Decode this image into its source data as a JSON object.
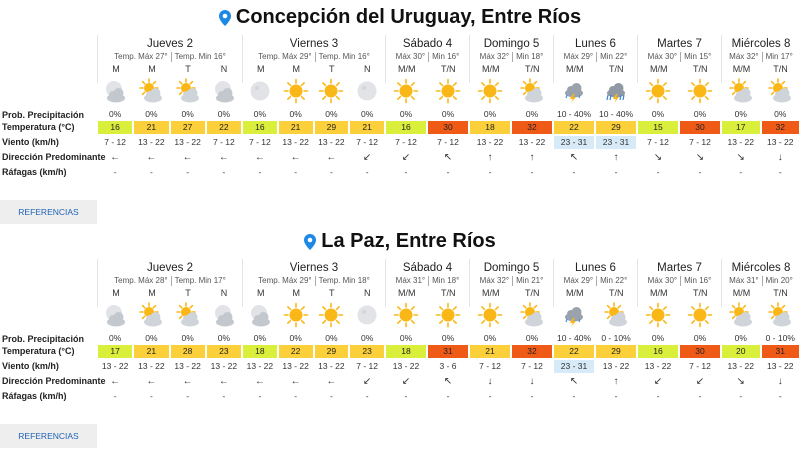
{
  "colors": {
    "pin": "#1e88e5",
    "temp_yellow": "#d9ef3b",
    "temp_gold": "#fcd03a",
    "temp_orange": "#f58e1f",
    "temp_red": "#f05a17",
    "wind_highlight": "#d6ebf7",
    "sun": "#f9b818",
    "cloud": "#cfd4da"
  },
  "row_labels": {
    "precip": "Prob. Precipitación",
    "temp": "Temperatura (°C)",
    "wind": "Viento (km/h)",
    "dir": "Dirección Predominante",
    "gusts": "Ráfagas (km/h)"
  },
  "locations": [
    {
      "title": "Concepción del Uruguay, Entre Ríos",
      "references_label": "REFERENCIAS",
      "days": [
        {
          "name": "Jueves 2",
          "max": "Temp. Máx 27°",
          "min": "Temp. Min 16°",
          "periods": [
            {
              "label": "M",
              "icon": "moon-cloud-icon",
              "precip": "0%",
              "temp": "16",
              "level": "yellow",
              "wind": "7 - 12",
              "arrow": "←",
              "gust": "-"
            },
            {
              "label": "M",
              "icon": "sun-cloud-icon",
              "precip": "0%",
              "temp": "21",
              "level": "gold",
              "wind": "13 - 22",
              "arrow": "←",
              "gust": "-"
            },
            {
              "label": "T",
              "icon": "sun-cloud-icon",
              "precip": "0%",
              "temp": "27",
              "level": "gold",
              "wind": "13 - 22",
              "arrow": "←",
              "gust": "-"
            },
            {
              "label": "N",
              "icon": "moon-cloud-icon",
              "precip": "0%",
              "temp": "22",
              "level": "gold",
              "wind": "7 - 12",
              "arrow": "←",
              "gust": "-"
            }
          ]
        },
        {
          "name": "Viernes 3",
          "max": "Temp. Máx 29°",
          "min": "Temp. Min 16°",
          "periods": [
            {
              "label": "M",
              "icon": "moon-icon",
              "precip": "0%",
              "temp": "16",
              "level": "yellow",
              "wind": "7 - 12",
              "arrow": "←",
              "gust": "-"
            },
            {
              "label": "M",
              "icon": "sun-icon",
              "precip": "0%",
              "temp": "21",
              "level": "gold",
              "wind": "13 - 22",
              "arrow": "←",
              "gust": "-"
            },
            {
              "label": "T",
              "icon": "sun-icon",
              "precip": "0%",
              "temp": "29",
              "level": "gold",
              "wind": "13 - 22",
              "arrow": "←",
              "gust": "-"
            },
            {
              "label": "N",
              "icon": "moon-icon",
              "precip": "0%",
              "temp": "21",
              "level": "gold",
              "wind": "7 - 12",
              "arrow": "↙",
              "gust": "-"
            }
          ]
        },
        {
          "name": "Sábado 4",
          "max": "Máx 30°",
          "min": "Min 16°",
          "periods": [
            {
              "label": "M/M",
              "icon": "sun-icon",
              "precip": "0%",
              "temp": "16",
              "level": "yellow",
              "wind": "7 - 12",
              "arrow": "↙",
              "gust": "-"
            },
            {
              "label": "T/N",
              "icon": "sun-icon",
              "precip": "0%",
              "temp": "30",
              "level": "red",
              "wind": "7 - 12",
              "arrow": "↖",
              "gust": "-"
            }
          ]
        },
        {
          "name": "Domingo 5",
          "max": "Máx 32°",
          "min": "Min 18°",
          "periods": [
            {
              "label": "M/M",
              "icon": "sun-icon",
              "precip": "0%",
              "temp": "18",
              "level": "gold",
              "wind": "13 - 22",
              "arrow": "↑",
              "gust": "-"
            },
            {
              "label": "T/N",
              "icon": "sun-cloud-icon",
              "precip": "0%",
              "temp": "32",
              "level": "red",
              "wind": "13 - 22",
              "arrow": "↑",
              "gust": "-"
            }
          ]
        },
        {
          "name": "Lunes 6",
          "max": "Máx 29°",
          "min": "Min 22°",
          "periods": [
            {
              "label": "M/M",
              "icon": "storm-icon",
              "precip": "10 - 40%",
              "temp": "22",
              "level": "gold",
              "wind": "23 - 31",
              "wind_hl": true,
              "arrow": "↖",
              "gust": "-"
            },
            {
              "label": "T/N",
              "icon": "rain-storm-icon",
              "precip": "10 - 40%",
              "temp": "29",
              "level": "gold",
              "wind": "23 - 31",
              "wind_hl": true,
              "arrow": "↑",
              "gust": "-"
            }
          ]
        },
        {
          "name": "Martes 7",
          "max": "Máx 30°",
          "min": "Min 15°",
          "periods": [
            {
              "label": "M/M",
              "icon": "sun-icon",
              "precip": "0%",
              "temp": "15",
              "level": "yellow",
              "wind": "7 - 12",
              "arrow": "↘",
              "gust": "-"
            },
            {
              "label": "T/N",
              "icon": "sun-icon",
              "precip": "0%",
              "temp": "30",
              "level": "red",
              "wind": "7 - 12",
              "arrow": "↘",
              "gust": "-"
            }
          ]
        },
        {
          "name": "Miércoles 8",
          "max": "Máx 32°",
          "min": "Min 17°",
          "periods": [
            {
              "label": "M/M",
              "icon": "sun-cloud-icon",
              "precip": "0%",
              "temp": "17",
              "level": "yellow",
              "wind": "13 - 22",
              "arrow": "↘",
              "gust": "-"
            },
            {
              "label": "T/N",
              "icon": "sun-cloud-icon",
              "precip": "0%",
              "temp": "32",
              "level": "red",
              "wind": "13 - 22",
              "arrow": "↓",
              "gust": "-"
            }
          ]
        }
      ]
    },
    {
      "title": "La Paz, Entre Ríos",
      "references_label": "REFERENCIAS",
      "days": [
        {
          "name": "Jueves 2",
          "max": "Temp. Máx 28°",
          "min": "Temp. Min 17°",
          "periods": [
            {
              "label": "M",
              "icon": "moon-cloud-icon",
              "precip": "0%",
              "temp": "17",
              "level": "yellow",
              "wind": "13 - 22",
              "arrow": "←",
              "gust": "-"
            },
            {
              "label": "M",
              "icon": "sun-cloud-icon",
              "precip": "0%",
              "temp": "21",
              "level": "gold",
              "wind": "13 - 22",
              "arrow": "←",
              "gust": "-"
            },
            {
              "label": "T",
              "icon": "sun-cloud-icon",
              "precip": "0%",
              "temp": "28",
              "level": "gold",
              "wind": "13 - 22",
              "arrow": "←",
              "gust": "-"
            },
            {
              "label": "N",
              "icon": "moon-cloud-icon",
              "precip": "0%",
              "temp": "23",
              "level": "gold",
              "wind": "13 - 22",
              "arrow": "←",
              "gust": "-"
            }
          ]
        },
        {
          "name": "Viernes 3",
          "max": "Temp. Máx 29°",
          "min": "Temp. Min 18°",
          "periods": [
            {
              "label": "M",
              "icon": "moon-cloud-icon",
              "precip": "0%",
              "temp": "18",
              "level": "yellow",
              "wind": "13 - 22",
              "arrow": "←",
              "gust": "-"
            },
            {
              "label": "M",
              "icon": "sun-icon",
              "precip": "0%",
              "temp": "22",
              "level": "gold",
              "wind": "13 - 22",
              "arrow": "←",
              "gust": "-"
            },
            {
              "label": "T",
              "icon": "sun-icon",
              "precip": "0%",
              "temp": "29",
              "level": "gold",
              "wind": "13 - 22",
              "arrow": "←",
              "gust": "-"
            },
            {
              "label": "N",
              "icon": "moon-icon",
              "precip": "0%",
              "temp": "23",
              "level": "gold",
              "wind": "7 - 12",
              "arrow": "↙",
              "gust": "-"
            }
          ]
        },
        {
          "name": "Sábado 4",
          "max": "Máx 31°",
          "min": "Min 18°",
          "periods": [
            {
              "label": "M/M",
              "icon": "sun-icon",
              "precip": "0%",
              "temp": "18",
              "level": "yellow",
              "wind": "13 - 22",
              "arrow": "↙",
              "gust": "-"
            },
            {
              "label": "T/N",
              "icon": "sun-icon",
              "precip": "0%",
              "temp": "31",
              "level": "red",
              "wind": "3 - 6",
              "arrow": "↖",
              "gust": "-"
            }
          ]
        },
        {
          "name": "Domingo 5",
          "max": "Máx 32°",
          "min": "Min 21°",
          "periods": [
            {
              "label": "M/M",
              "icon": "sun-icon",
              "precip": "0%",
              "temp": "21",
              "level": "gold",
              "wind": "7 - 12",
              "arrow": "↓",
              "gust": "-"
            },
            {
              "label": "T/N",
              "icon": "sun-cloud-icon",
              "precip": "0%",
              "temp": "32",
              "level": "red",
              "wind": "7 - 12",
              "arrow": "↓",
              "gust": "-"
            }
          ]
        },
        {
          "name": "Lunes 6",
          "max": "Máx 29°",
          "min": "Min 22°",
          "periods": [
            {
              "label": "M/M",
              "icon": "storm-icon",
              "precip": "10 - 40%",
              "temp": "22",
              "level": "gold",
              "wind": "23 - 31",
              "wind_hl": true,
              "arrow": "↖",
              "gust": "-"
            },
            {
              "label": "T/N",
              "icon": "sun-cloud-icon",
              "precip": "0 - 10%",
              "temp": "29",
              "level": "gold",
              "wind": "13 - 22",
              "arrow": "↑",
              "gust": "-"
            }
          ]
        },
        {
          "name": "Martes 7",
          "max": "Máx 30°",
          "min": "Min 16°",
          "periods": [
            {
              "label": "M/M",
              "icon": "sun-icon",
              "precip": "0%",
              "temp": "16",
              "level": "yellow",
              "wind": "13 - 22",
              "arrow": "↙",
              "gust": "-"
            },
            {
              "label": "T/N",
              "icon": "sun-icon",
              "precip": "0%",
              "temp": "30",
              "level": "red",
              "wind": "7 - 12",
              "arrow": "↙",
              "gust": "-"
            }
          ]
        },
        {
          "name": "Miércoles 8",
          "max": "Máx 31°",
          "min": "Min 20°",
          "periods": [
            {
              "label": "M/M",
              "icon": "sun-cloud-icon",
              "precip": "0%",
              "temp": "20",
              "level": "yellow",
              "wind": "13 - 22",
              "arrow": "↘",
              "gust": "-"
            },
            {
              "label": "T/N",
              "icon": "sun-cloud-icon",
              "precip": "0 - 10%",
              "temp": "31",
              "level": "red",
              "wind": "13 - 22",
              "arrow": "↓",
              "gust": "-"
            }
          ]
        }
      ]
    }
  ]
}
